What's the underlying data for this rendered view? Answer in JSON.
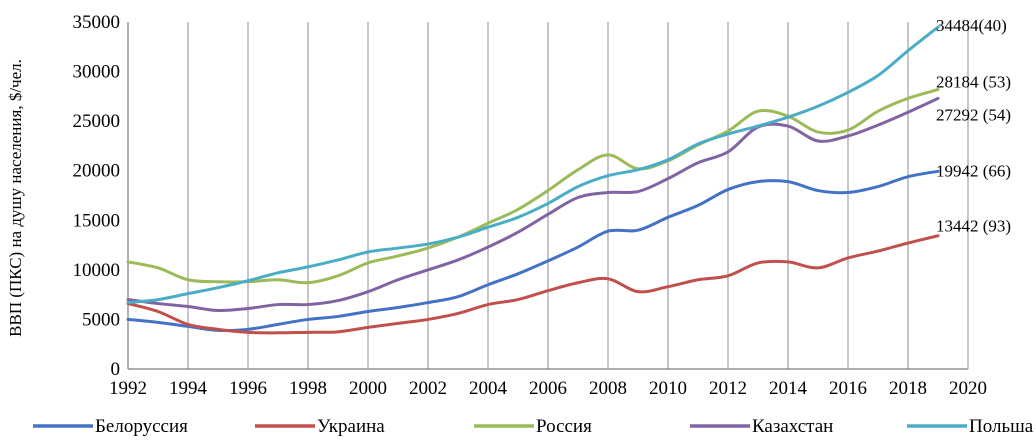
{
  "chart_data": {
    "type": "line",
    "title": "",
    "ylabel": "ВВП (ПКС) на душу населения, $/чел.",
    "xlabel": "",
    "xlim": [
      1992,
      2020
    ],
    "ylim": [
      0,
      35000
    ],
    "x_ticks": [
      "1992",
      "1994",
      "1996",
      "1998",
      "2000",
      "2002",
      "2004",
      "2006",
      "2008",
      "2010",
      "2012",
      "2014",
      "2016",
      "2018",
      "2020"
    ],
    "y_ticks": [
      "0",
      "5000",
      "10000",
      "15000",
      "20000",
      "25000",
      "30000",
      "35000"
    ],
    "grid": "vertical",
    "legend": "bottom",
    "x": [
      1992,
      1993,
      1994,
      1995,
      1996,
      1997,
      1998,
      1999,
      2000,
      2001,
      2002,
      2003,
      2004,
      2005,
      2006,
      2007,
      2008,
      2009,
      2010,
      2011,
      2012,
      2013,
      2014,
      2015,
      2016,
      2017,
      2018,
      2019
    ],
    "series": [
      {
        "name": "Белоруссия",
        "color": "#4472c4",
        "values": [
          5000,
          4700,
          4300,
          3900,
          4000,
          4500,
          5000,
          5300,
          5800,
          6200,
          6700,
          7300,
          8500,
          9600,
          10900,
          12300,
          13900,
          14000,
          15300,
          16500,
          18100,
          18900,
          18900,
          18000,
          17800,
          18400,
          19400,
          19942
        ],
        "end_label": "19942 (66)"
      },
      {
        "name": "Украина",
        "color": "#c0504d",
        "values": [
          6600,
          5800,
          4500,
          4000,
          3700,
          3650,
          3700,
          3750,
          4200,
          4600,
          5000,
          5600,
          6500,
          7000,
          7900,
          8700,
          9100,
          7800,
          8300,
          9000,
          9400,
          10700,
          10800,
          10200,
          11200,
          11900,
          12700,
          13442
        ],
        "end_label": "13442 (93)"
      },
      {
        "name": "Россия",
        "color": "#9bbb59",
        "values": [
          10800,
          10200,
          9000,
          8800,
          8800,
          9000,
          8700,
          9400,
          10700,
          11400,
          12200,
          13300,
          14700,
          16100,
          18000,
          20100,
          21600,
          20200,
          21000,
          22600,
          24000,
          26000,
          25500,
          23900,
          24100,
          26000,
          27300,
          28184
        ],
        "end_label": "28184 (53)"
      },
      {
        "name": "Казахстан",
        "color": "#8064a2",
        "values": [
          7000,
          6600,
          6300,
          5900,
          6100,
          6500,
          6500,
          6900,
          7800,
          9000,
          10000,
          11000,
          12300,
          13800,
          15600,
          17300,
          17800,
          17900,
          19200,
          20800,
          21900,
          24400,
          24500,
          23000,
          23500,
          24600,
          25900,
          27292
        ],
        "end_label": "27292 (54)"
      },
      {
        "name": "Польша",
        "color": "#4bacc6",
        "values": [
          6700,
          7000,
          7600,
          8200,
          8900,
          9700,
          10300,
          11000,
          11800,
          12200,
          12600,
          13300,
          14300,
          15300,
          16700,
          18400,
          19500,
          20100,
          21100,
          22700,
          23700,
          24500,
          25400,
          26500,
          27900,
          29600,
          32100,
          34484
        ],
        "end_label": "34484(40)"
      }
    ]
  }
}
